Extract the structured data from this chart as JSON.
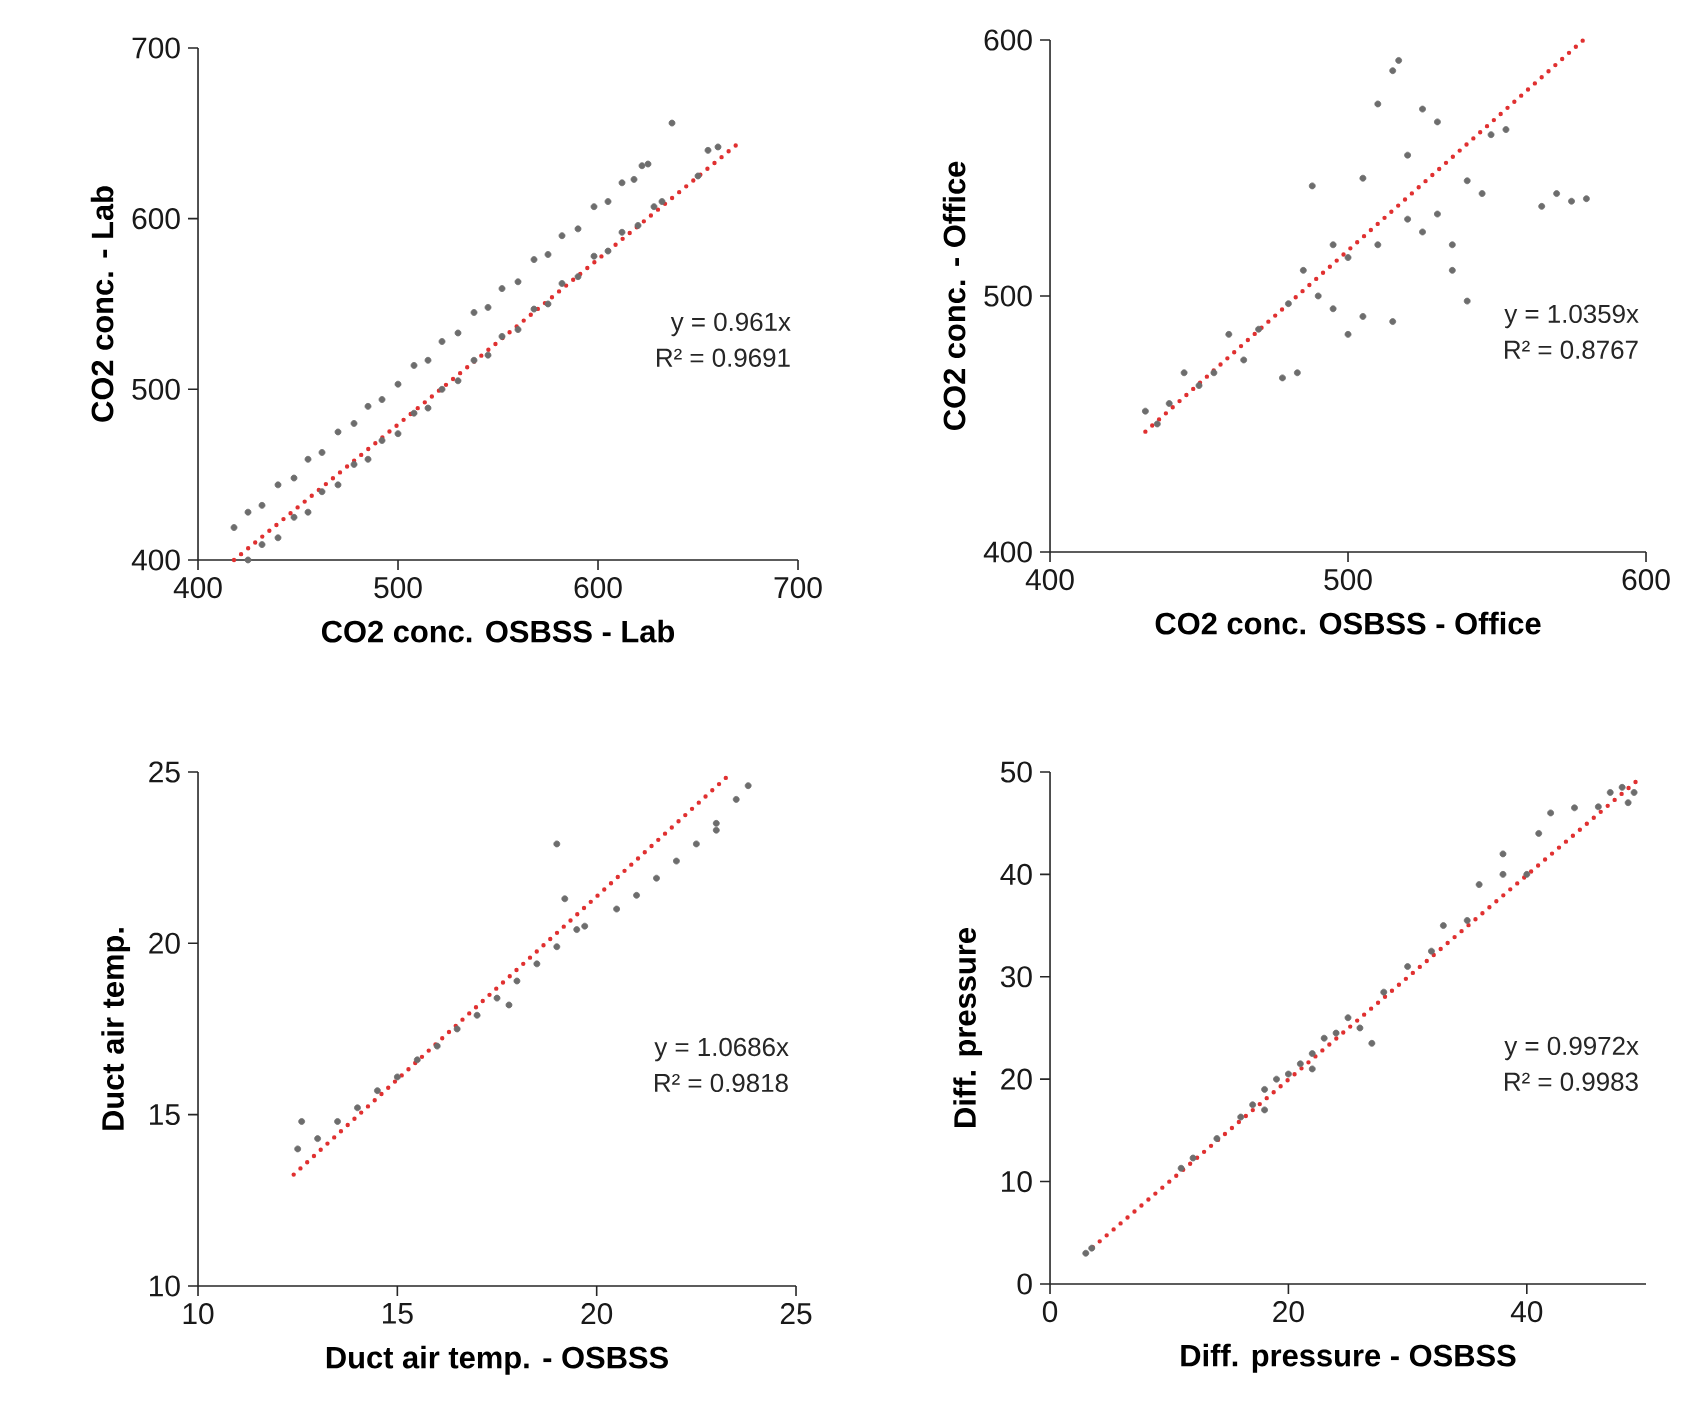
{
  "chart_data": [
    {
      "type": "scatter",
      "xlabel": "CO2 conc. OSBSS - Lab",
      "ylabel": "CO2 conc. - Lab",
      "xlim": [
        400,
        700
      ],
      "ylim": [
        400,
        700
      ],
      "xticks": [
        400,
        500,
        600,
        700
      ],
      "yticks": [
        400,
        500,
        600,
        700
      ],
      "annotations": [
        "y = 0.961x",
        "R² = 0.9691"
      ],
      "series": [
        {
          "type": "scatter",
          "color": "#6d6d6d",
          "marker": "circle",
          "x": [
            418,
            425,
            432,
            440,
            448,
            455,
            462,
            470,
            478,
            485,
            492,
            500,
            508,
            515,
            522,
            530,
            538,
            545,
            552,
            560,
            568,
            575,
            582,
            590,
            598,
            605,
            612,
            618,
            622,
            625,
            425,
            432,
            440,
            448,
            455,
            462,
            470,
            478,
            485,
            492,
            500,
            508,
            515,
            522,
            530,
            538,
            545,
            552,
            560,
            568,
            575,
            582,
            590,
            598,
            605,
            612,
            620,
            628,
            632,
            637,
            650,
            655,
            660
          ],
          "values": [
            419,
            428,
            432,
            444,
            448,
            459,
            463,
            475,
            480,
            490,
            494,
            503,
            514,
            517,
            528,
            533,
            545,
            548,
            559,
            563,
            576,
            579,
            590,
            594,
            607,
            610,
            621,
            623,
            631,
            632,
            400,
            409,
            413,
            425,
            428,
            440,
            444,
            456,
            459,
            470,
            474,
            486,
            489,
            500,
            505,
            517,
            520,
            531,
            535,
            547,
            550,
            562,
            566,
            578,
            581,
            592,
            596,
            607,
            610,
            656,
            625,
            640,
            642
          ]
        },
        {
          "type": "line",
          "color": "#e03030",
          "line_style": "dotted",
          "x": [
            418,
            670
          ],
          "values": [
            400,
            644
          ]
        }
      ]
    },
    {
      "type": "scatter",
      "xlabel": "CO2 conc. OSBSS - Office",
      "ylabel": "CO2 conc. - Office",
      "xlim": [
        400,
        600
      ],
      "ylim": [
        400,
        600
      ],
      "xticks": [
        400,
        500,
        600
      ],
      "yticks": [
        400,
        500,
        600
      ],
      "annotations": [
        "y = 1.0359x",
        "R² = 0.8767"
      ],
      "series": [
        {
          "type": "scatter",
          "color": "#6d6d6d",
          "marker": "circle",
          "x": [
            432,
            436,
            440,
            445,
            450,
            455,
            460,
            465,
            470,
            478,
            480,
            483,
            485,
            488,
            490,
            495,
            495,
            500,
            500,
            505,
            505,
            510,
            510,
            515,
            515,
            517,
            520,
            520,
            525,
            525,
            530,
            530,
            535,
            535,
            540,
            540,
            545,
            548,
            553,
            565,
            570,
            575,
            580
          ],
          "values": [
            455,
            450,
            458,
            470,
            465,
            470,
            485,
            475,
            487,
            468,
            497,
            470,
            510,
            543,
            500,
            520,
            495,
            515,
            485,
            492,
            546,
            520,
            575,
            490,
            588,
            592,
            530,
            555,
            525,
            573,
            532,
            568,
            510,
            520,
            545,
            498,
            540,
            563,
            565,
            535,
            540,
            537,
            538
          ]
        },
        {
          "type": "line",
          "color": "#e03030",
          "line_style": "dotted",
          "x": [
            432,
            579
          ],
          "values": [
            447,
            600
          ]
        }
      ]
    },
    {
      "type": "scatter",
      "xlabel": "Duct air temp. - OSBSS",
      "ylabel": "Duct air temp.",
      "xlim": [
        10,
        25
      ],
      "ylim": [
        10,
        25
      ],
      "xticks": [
        10,
        15,
        20,
        25
      ],
      "yticks": [
        10,
        15,
        20,
        25
      ],
      "annotations": [
        "y = 1.0686x",
        "R² = 0.9818"
      ],
      "series": [
        {
          "type": "scatter",
          "color": "#6d6d6d",
          "marker": "circle",
          "x": [
            12.5,
            12.6,
            13,
            13.5,
            14,
            14.5,
            15,
            15.5,
            16,
            16.5,
            17,
            17.5,
            17.8,
            18,
            18.5,
            19,
            19,
            19.2,
            19.5,
            19.7,
            20.5,
            21,
            21.5,
            22,
            22.5,
            23,
            23,
            23.5,
            23.8
          ],
          "values": [
            14.0,
            14.8,
            14.3,
            14.8,
            15.2,
            15.7,
            16.1,
            16.6,
            17.0,
            17.5,
            17.9,
            18.4,
            18.2,
            18.9,
            19.4,
            19.9,
            22.9,
            21.3,
            20.4,
            20.5,
            21.0,
            21.4,
            21.9,
            22.4,
            22.9,
            23.5,
            23.3,
            24.2,
            24.6
          ]
        },
        {
          "type": "line",
          "color": "#e03030",
          "line_style": "dotted",
          "x": [
            12.4,
            23.4
          ],
          "values": [
            13.25,
            25.0
          ]
        }
      ]
    },
    {
      "type": "scatter",
      "xlabel": "Diff. pressure - OSBSS",
      "ylabel": "Diff. pressure",
      "xlim": [
        0,
        50
      ],
      "ylim": [
        0,
        50
      ],
      "xticks": [
        0,
        20,
        40
      ],
      "yticks": [
        0,
        10,
        20,
        30,
        40,
        50
      ],
      "annotations": [
        "y = 0.9972x",
        "R² = 0.9983"
      ],
      "series": [
        {
          "type": "scatter",
          "color": "#6d6d6d",
          "marker": "circle",
          "x": [
            3,
            3.5,
            11,
            12,
            14,
            16,
            17,
            18,
            18,
            19,
            20,
            21,
            22,
            22,
            23,
            24,
            25,
            26,
            27,
            28,
            30,
            32,
            33,
            35,
            36,
            38,
            38,
            40,
            41,
            42,
            44,
            46,
            47,
            48,
            48.5,
            49
          ],
          "values": [
            3,
            3.5,
            11.3,
            12.3,
            14.2,
            16.3,
            17.5,
            19,
            17,
            20,
            20.5,
            21.5,
            22.5,
            21,
            24,
            24.5,
            26,
            25,
            23.5,
            28.5,
            31,
            32.5,
            35,
            35.5,
            39,
            40,
            42,
            40,
            44,
            46,
            46.5,
            46.6,
            48,
            48.5,
            47,
            48
          ]
        },
        {
          "type": "line",
          "color": "#e03030",
          "line_style": "dotted",
          "x": [
            3,
            49.3
          ],
          "values": [
            3,
            49.2
          ]
        }
      ]
    }
  ]
}
